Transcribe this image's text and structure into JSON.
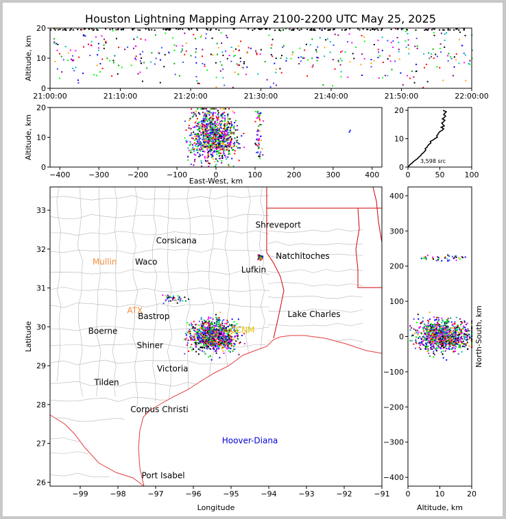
{
  "title": "Houston Lightning Mapping Array 2100-2200 UTC May 25, 2025",
  "colors": {
    "axis": "#000000",
    "state_border": "#cc0000",
    "county": "#b4b4b4",
    "coast": "#e23b3b",
    "orange_label": "#f08c3c",
    "blue_label": "#0000dd",
    "yellow_label": "#e0c000"
  },
  "chart_data": [
    {
      "id": "time-altitude",
      "type": "scatter",
      "ylabel": "Altitude, km",
      "xlabel": "",
      "xlim": [
        0,
        60
      ],
      "ylim": [
        0,
        20
      ],
      "xticks": [
        0,
        10,
        20,
        30,
        40,
        50,
        60
      ],
      "xtick_labels": [
        "21:00:00",
        "21:10:00",
        "21:20:00",
        "21:30:00",
        "21:40:00",
        "21:50:00",
        "22:00:00"
      ],
      "yticks": [
        0,
        10,
        20
      ],
      "ytick_labels": [
        "0",
        "10",
        "20"
      ]
    },
    {
      "id": "ew-altitude",
      "type": "scatter",
      "xlabel": "East-West, km",
      "ylabel": "Altitude, km",
      "xlim": [
        -425,
        425
      ],
      "ylim": [
        0,
        20
      ],
      "xticks": [
        -400,
        -300,
        -200,
        -100,
        0,
        100,
        200,
        300,
        400
      ],
      "xtick_labels": [
        "−400",
        "−300",
        "−200",
        "−100",
        "0",
        "100",
        "200",
        "300",
        "400"
      ],
      "yticks": [
        0,
        10,
        20
      ],
      "ytick_labels": [
        "0",
        "10",
        "20"
      ]
    },
    {
      "id": "altitude-histogram",
      "type": "line",
      "xlim": [
        0,
        100
      ],
      "ylim": [
        0,
        21
      ],
      "xticks": [
        0,
        50,
        100
      ],
      "xtick_labels": [
        "0",
        "50",
        "100"
      ],
      "yticks": [
        0,
        10,
        20
      ],
      "ytick_labels": [
        "0",
        "10",
        "20"
      ],
      "annotation": "3,598 src",
      "profile": [
        [
          0,
          0.0
        ],
        [
          2,
          0.5
        ],
        [
          4,
          1.0
        ],
        [
          7,
          1.5
        ],
        [
          9,
          2.0
        ],
        [
          12,
          2.5
        ],
        [
          15,
          3.0
        ],
        [
          17,
          3.5
        ],
        [
          20,
          4.0
        ],
        [
          21,
          4.5
        ],
        [
          24,
          5.0
        ],
        [
          26,
          5.5
        ],
        [
          28,
          6.0
        ],
        [
          27,
          6.5
        ],
        [
          30,
          7.0
        ],
        [
          31,
          7.5
        ],
        [
          33,
          8.0
        ],
        [
          36,
          8.5
        ],
        [
          35,
          9.0
        ],
        [
          39,
          9.5
        ],
        [
          42,
          10.0
        ],
        [
          46,
          10.5
        ],
        [
          45,
          11.0
        ],
        [
          47,
          11.5
        ],
        [
          48,
          12.0
        ],
        [
          50,
          12.5
        ],
        [
          54,
          13.0
        ],
        [
          56,
          13.5
        ],
        [
          52,
          14.0
        ],
        [
          57,
          14.5
        ],
        [
          55,
          15.0
        ],
        [
          53,
          15.5
        ],
        [
          56,
          16.0
        ],
        [
          58,
          16.5
        ],
        [
          54,
          17.0
        ],
        [
          57,
          17.5
        ],
        [
          59,
          18.0
        ],
        [
          56,
          18.5
        ],
        [
          58,
          19.0
        ],
        [
          60,
          19.5
        ],
        [
          55,
          20.0
        ]
      ]
    },
    {
      "id": "plan-view",
      "type": "scatter",
      "xlabel": "Longitude",
      "ylabel": "Latitude",
      "xlim": [
        -99.8,
        -91.0
      ],
      "ylim": [
        25.9,
        33.6
      ],
      "xticks": [
        -99,
        -98,
        -97,
        -96,
        -95,
        -94,
        -93,
        -92,
        -91
      ],
      "xtick_labels": [
        "−99",
        "−98",
        "−97",
        "−96",
        "−95",
        "−94",
        "−93",
        "−92",
        "−91"
      ],
      "yticks": [
        26,
        27,
        28,
        29,
        30,
        31,
        32,
        33
      ],
      "ytick_labels": [
        "26",
        "27",
        "28",
        "29",
        "30",
        "31",
        "32",
        "33"
      ],
      "places": [
        {
          "name": "Shreveport",
          "lon": -93.75,
          "lat": 32.55,
          "style": "black"
        },
        {
          "name": "Corsicana",
          "lon": -96.45,
          "lat": 32.15,
          "style": "black"
        },
        {
          "name": "Mullin",
          "lon": -98.35,
          "lat": 31.6,
          "style": "orange"
        },
        {
          "name": "Waco",
          "lon": -97.25,
          "lat": 31.6,
          "style": "black"
        },
        {
          "name": "Natchitoches",
          "lon": -93.1,
          "lat": 31.75,
          "style": "black"
        },
        {
          "name": "Lufkin",
          "lon": -94.4,
          "lat": 31.4,
          "style": "black"
        },
        {
          "name": "ATX",
          "lon": -97.55,
          "lat": 30.35,
          "style": "orange"
        },
        {
          "name": "Bastrop",
          "lon": -97.05,
          "lat": 30.2,
          "style": "black"
        },
        {
          "name": "Lake Charles",
          "lon": -92.8,
          "lat": 30.25,
          "style": "black"
        },
        {
          "name": "Boerne",
          "lon": -98.4,
          "lat": 29.82,
          "style": "black"
        },
        {
          "name": "Shiner",
          "lon": -97.15,
          "lat": 29.45,
          "style": "black"
        },
        {
          "name": "Victoria",
          "lon": -96.55,
          "lat": 28.85,
          "style": "black"
        },
        {
          "name": "Tilden",
          "lon": -98.3,
          "lat": 28.5,
          "style": "black"
        },
        {
          "name": "Corpus Christi",
          "lon": -96.9,
          "lat": 27.8,
          "style": "black"
        },
        {
          "name": "Hoover-Diana",
          "lon": -94.5,
          "lat": 27.0,
          "style": "blue"
        },
        {
          "name": "Port Isabel",
          "lon": -96.8,
          "lat": 26.1,
          "style": "black"
        },
        {
          "name": "CCNM",
          "lon": -94.7,
          "lat": 29.85,
          "style": "yellow"
        }
      ]
    },
    {
      "id": "altitude-ns",
      "type": "scatter",
      "xlabel": "Altitude, km",
      "ylabel": "North-South, km",
      "xlim": [
        0,
        20
      ],
      "ylim": [
        -425,
        425
      ],
      "xticks": [
        0,
        10,
        20
      ],
      "xtick_labels": [
        "0",
        "10",
        "20"
      ],
      "yticks": [
        -400,
        -300,
        -200,
        -100,
        0,
        100,
        200,
        300,
        400
      ],
      "ytick_labels": [
        "−400",
        "−300",
        "−200",
        "−100",
        "0",
        "100",
        "200",
        "300",
        "400"
      ]
    }
  ]
}
